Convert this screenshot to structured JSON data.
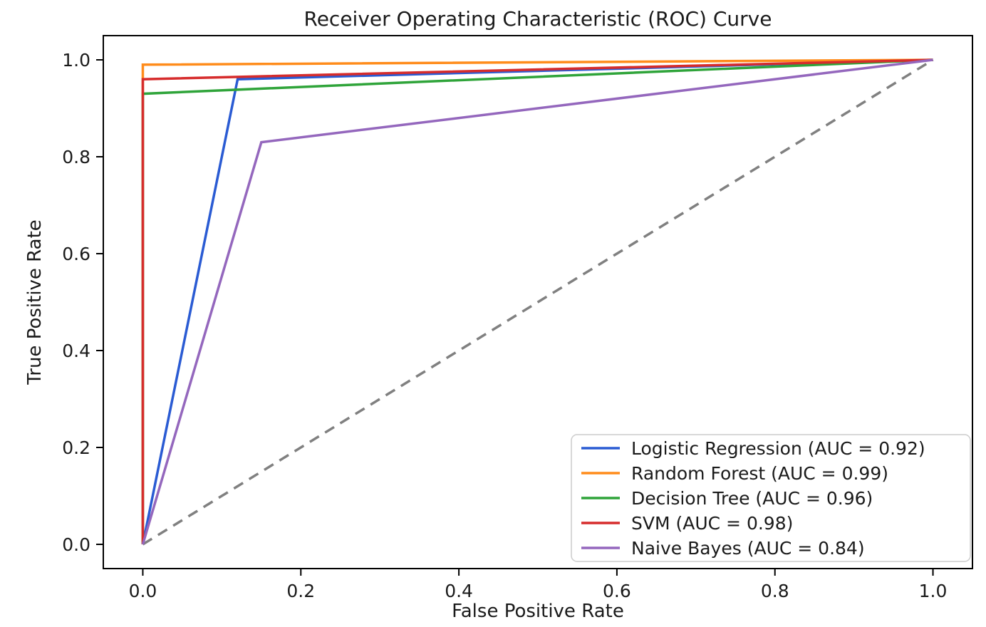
{
  "figure": {
    "background_color": "#ffffff",
    "axis_color": "#000000",
    "text_color": "#1a1a1a",
    "legend_border_color": "#cccccc",
    "legend_background_color": "#ffffff"
  },
  "chart_data": {
    "type": "line",
    "title": "Receiver Operating Characteristic (ROC) Curve",
    "xlabel": "False Positive Rate",
    "ylabel": "True Positive Rate",
    "xlim": [
      -0.05,
      1.05
    ],
    "ylim": [
      -0.05,
      1.05
    ],
    "grid": false,
    "legend_position": "lower right",
    "x_ticks": [
      {
        "v": 0.0,
        "label": "0.0"
      },
      {
        "v": 0.2,
        "label": "0.2"
      },
      {
        "v": 0.4,
        "label": "0.4"
      },
      {
        "v": 0.6,
        "label": "0.6"
      },
      {
        "v": 0.8,
        "label": "0.8"
      },
      {
        "v": 1.0,
        "label": "1.0"
      }
    ],
    "y_ticks": [
      {
        "v": 0.0,
        "label": "0.0"
      },
      {
        "v": 0.2,
        "label": "0.2"
      },
      {
        "v": 0.4,
        "label": "0.4"
      },
      {
        "v": 0.6,
        "label": "0.6"
      },
      {
        "v": 0.8,
        "label": "0.8"
      },
      {
        "v": 1.0,
        "label": "1.0"
      }
    ],
    "series": [
      {
        "name": "Logistic Regression",
        "auc": 0.92,
        "label": "Logistic Regression (AUC = 0.92)",
        "color": "#2a5bd3",
        "points": [
          [
            0.0,
            0.0
          ],
          [
            0.12,
            0.96
          ],
          [
            1.0,
            1.0
          ]
        ]
      },
      {
        "name": "Random Forest",
        "auc": 0.99,
        "label": "Random Forest (AUC = 0.99)",
        "color": "#ff8c1b",
        "points": [
          [
            0.0,
            0.0
          ],
          [
            0.0,
            0.99
          ],
          [
            1.0,
            1.0
          ]
        ]
      },
      {
        "name": "Decision Tree",
        "auc": 0.96,
        "label": "Decision Tree (AUC = 0.96)",
        "color": "#2fa43a",
        "points": [
          [
            0.0,
            0.0
          ],
          [
            0.0,
            0.93
          ],
          [
            1.0,
            1.0
          ]
        ]
      },
      {
        "name": "SVM",
        "auc": 0.98,
        "label": "SVM (AUC = 0.98)",
        "color": "#d62c2c",
        "points": [
          [
            0.0,
            0.0
          ],
          [
            0.0,
            0.96
          ],
          [
            1.0,
            1.0
          ]
        ]
      },
      {
        "name": "Naive Bayes",
        "auc": 0.84,
        "label": "Naive Bayes (AUC = 0.84)",
        "color": "#9467bd",
        "points": [
          [
            0.0,
            0.0
          ],
          [
            0.15,
            0.83
          ],
          [
            1.0,
            1.0
          ]
        ]
      }
    ],
    "reference_line": {
      "name": "chance-diagonal",
      "color": "#808080",
      "style": "dashed",
      "points": [
        [
          0.0,
          0.0
        ],
        [
          1.0,
          1.0
        ]
      ]
    }
  }
}
